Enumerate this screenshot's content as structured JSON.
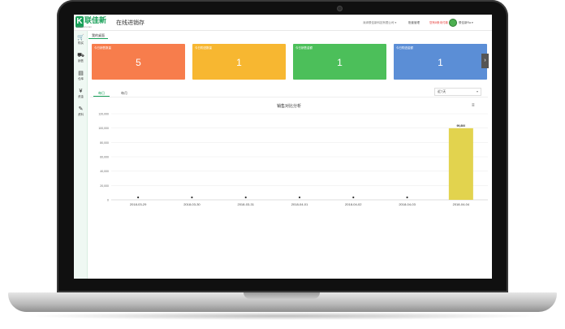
{
  "app": {
    "brand_text": "联佳新",
    "brand_sub": "lianjiaxin.com",
    "title": "在线进销存"
  },
  "topbar": {
    "company_select": "深圳联佳新科技有限公司 ▾",
    "account_mgmt": "账套管理",
    "unpaid_alert": "您有8条未付款",
    "user_name": "联佳新Ra ▾"
  },
  "sidebar": {
    "items": [
      {
        "icon": "cart-icon",
        "glyph": "🛒",
        "label": "购买"
      },
      {
        "icon": "sale-cart-icon",
        "glyph": "⛟",
        "label": "销售"
      },
      {
        "icon": "warehouse-icon",
        "glyph": "▤",
        "label": "仓库"
      },
      {
        "icon": "money-icon",
        "glyph": "¥",
        "label": "资金"
      },
      {
        "icon": "settings-icon",
        "glyph": "✎",
        "label": "资料"
      }
    ]
  },
  "breadcrumb": {
    "label": "我的桌面"
  },
  "cards": [
    {
      "label": "今日销售数量",
      "value": "5",
      "color": "#f77d4c"
    },
    {
      "label": "今日购进数量",
      "value": "1",
      "color": "#f7b731"
    },
    {
      "label": "今日销售金额",
      "value": "1",
      "color": "#4cbf5a"
    },
    {
      "label": "今日购进金额",
      "value": "1",
      "color": "#5b8ed6"
    }
  ],
  "tabs": {
    "day": "每日",
    "month": "每月"
  },
  "range_select": {
    "value": "近7天"
  },
  "chart_data": {
    "type": "bar",
    "title": "销售对比分析",
    "categories": [
      "2018-03-29",
      "2018-03-30",
      "2018-03-31",
      "2018-04-01",
      "2018-04-02",
      "2018-04-03",
      "2018-04-04"
    ],
    "values": [
      0,
      0,
      0,
      0,
      0,
      0,
      99800
    ],
    "value_labels": [
      "",
      "",
      "",
      "",
      "",
      "",
      "99,800"
    ],
    "ylim": [
      0,
      120000
    ],
    "yticks": [
      "0",
      "20,000",
      "40,000",
      "60,000",
      "80,000",
      "100,000",
      "120,000"
    ],
    "bar_color": "#e2d34e",
    "grid": true
  }
}
